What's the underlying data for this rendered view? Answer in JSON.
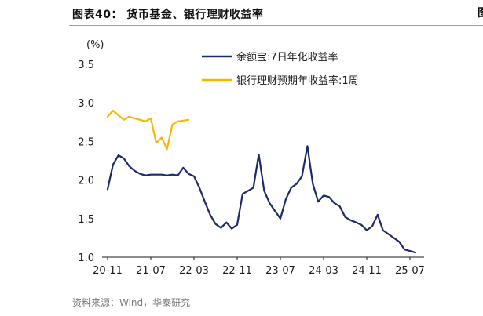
{
  "header": {
    "title": "图表40： 货币基金、银行理财收益率",
    "right_cut_text": "图"
  },
  "footer": {
    "source": "资料来源：Wind，华泰研究"
  },
  "colors": {
    "yuebao": "#1b2a6b",
    "wealth": "#f5b800",
    "accent_rule": "#c9a227"
  },
  "chart_data": {
    "type": "line",
    "unit_label": "(%)",
    "ylim": [
      1.0,
      3.5
    ],
    "yticks": [
      "1.0",
      "1.5",
      "2.0",
      "2.5",
      "3.0",
      "3.5"
    ],
    "xticks": [
      "20-11",
      "21-07",
      "22-03",
      "22-11",
      "23-07",
      "24-03",
      "24-11",
      "25-07"
    ],
    "legend_position": "top-right",
    "grid": false,
    "series": [
      {
        "name": "余额宝:7日年化收益率",
        "color": "#1b2a6b",
        "points": [
          [
            "20-11",
            1.88
          ],
          [
            "20-12",
            2.2
          ],
          [
            "21-01",
            2.32
          ],
          [
            "21-02",
            2.28
          ],
          [
            "21-03",
            2.18
          ],
          [
            "21-04",
            2.12
          ],
          [
            "21-05",
            2.08
          ],
          [
            "21-06",
            2.06
          ],
          [
            "21-07",
            2.07
          ],
          [
            "21-08",
            2.07
          ],
          [
            "21-09",
            2.07
          ],
          [
            "21-10",
            2.06
          ],
          [
            "21-11",
            2.07
          ],
          [
            "21-12",
            2.06
          ],
          [
            "22-01",
            2.16
          ],
          [
            "22-02",
            2.08
          ],
          [
            "22-03",
            2.05
          ],
          [
            "22-04",
            1.9
          ],
          [
            "22-05",
            1.72
          ],
          [
            "22-06",
            1.55
          ],
          [
            "22-07",
            1.43
          ],
          [
            "22-08",
            1.38
          ],
          [
            "22-09",
            1.45
          ],
          [
            "22-10",
            1.37
          ],
          [
            "22-11",
            1.42
          ],
          [
            "22-12",
            1.82
          ],
          [
            "23-01",
            1.86
          ],
          [
            "23-02",
            1.9
          ],
          [
            "23-03",
            2.33
          ],
          [
            "23-04",
            1.86
          ],
          [
            "23-05",
            1.7
          ],
          [
            "23-06",
            1.6
          ],
          [
            "23-07",
            1.5
          ],
          [
            "23-08",
            1.75
          ],
          [
            "23-09",
            1.9
          ],
          [
            "23-10",
            1.95
          ],
          [
            "23-11",
            2.05
          ],
          [
            "23-12",
            2.44
          ],
          [
            "24-01",
            1.95
          ],
          [
            "24-02",
            1.72
          ],
          [
            "24-03",
            1.8
          ],
          [
            "24-04",
            1.78
          ],
          [
            "24-05",
            1.7
          ],
          [
            "24-06",
            1.66
          ],
          [
            "24-07",
            1.52
          ],
          [
            "24-08",
            1.48
          ],
          [
            "24-09",
            1.45
          ],
          [
            "24-10",
            1.42
          ],
          [
            "24-11",
            1.35
          ],
          [
            "24-12",
            1.4
          ],
          [
            "25-01",
            1.55
          ],
          [
            "25-02",
            1.35
          ],
          [
            "25-03",
            1.3
          ],
          [
            "25-04",
            1.25
          ],
          [
            "25-05",
            1.2
          ],
          [
            "25-06",
            1.1
          ],
          [
            "25-07",
            1.08
          ],
          [
            "25-08",
            1.06
          ]
        ]
      },
      {
        "name": "银行理财预期年收益率:1周",
        "color": "#f5b800",
        "points": [
          [
            "20-11",
            2.82
          ],
          [
            "20-12",
            2.9
          ],
          [
            "21-01",
            2.84
          ],
          [
            "21-02",
            2.78
          ],
          [
            "21-03",
            2.82
          ],
          [
            "21-04",
            2.8
          ],
          [
            "21-05",
            2.78
          ],
          [
            "21-06",
            2.76
          ],
          [
            "21-07",
            2.8
          ],
          [
            "21-08",
            2.48
          ],
          [
            "21-09",
            2.55
          ],
          [
            "21-10",
            2.4
          ],
          [
            "21-11",
            2.72
          ],
          [
            "21-12",
            2.76
          ],
          [
            "22-01",
            2.77
          ],
          [
            "22-02",
            2.78
          ]
        ]
      }
    ]
  }
}
